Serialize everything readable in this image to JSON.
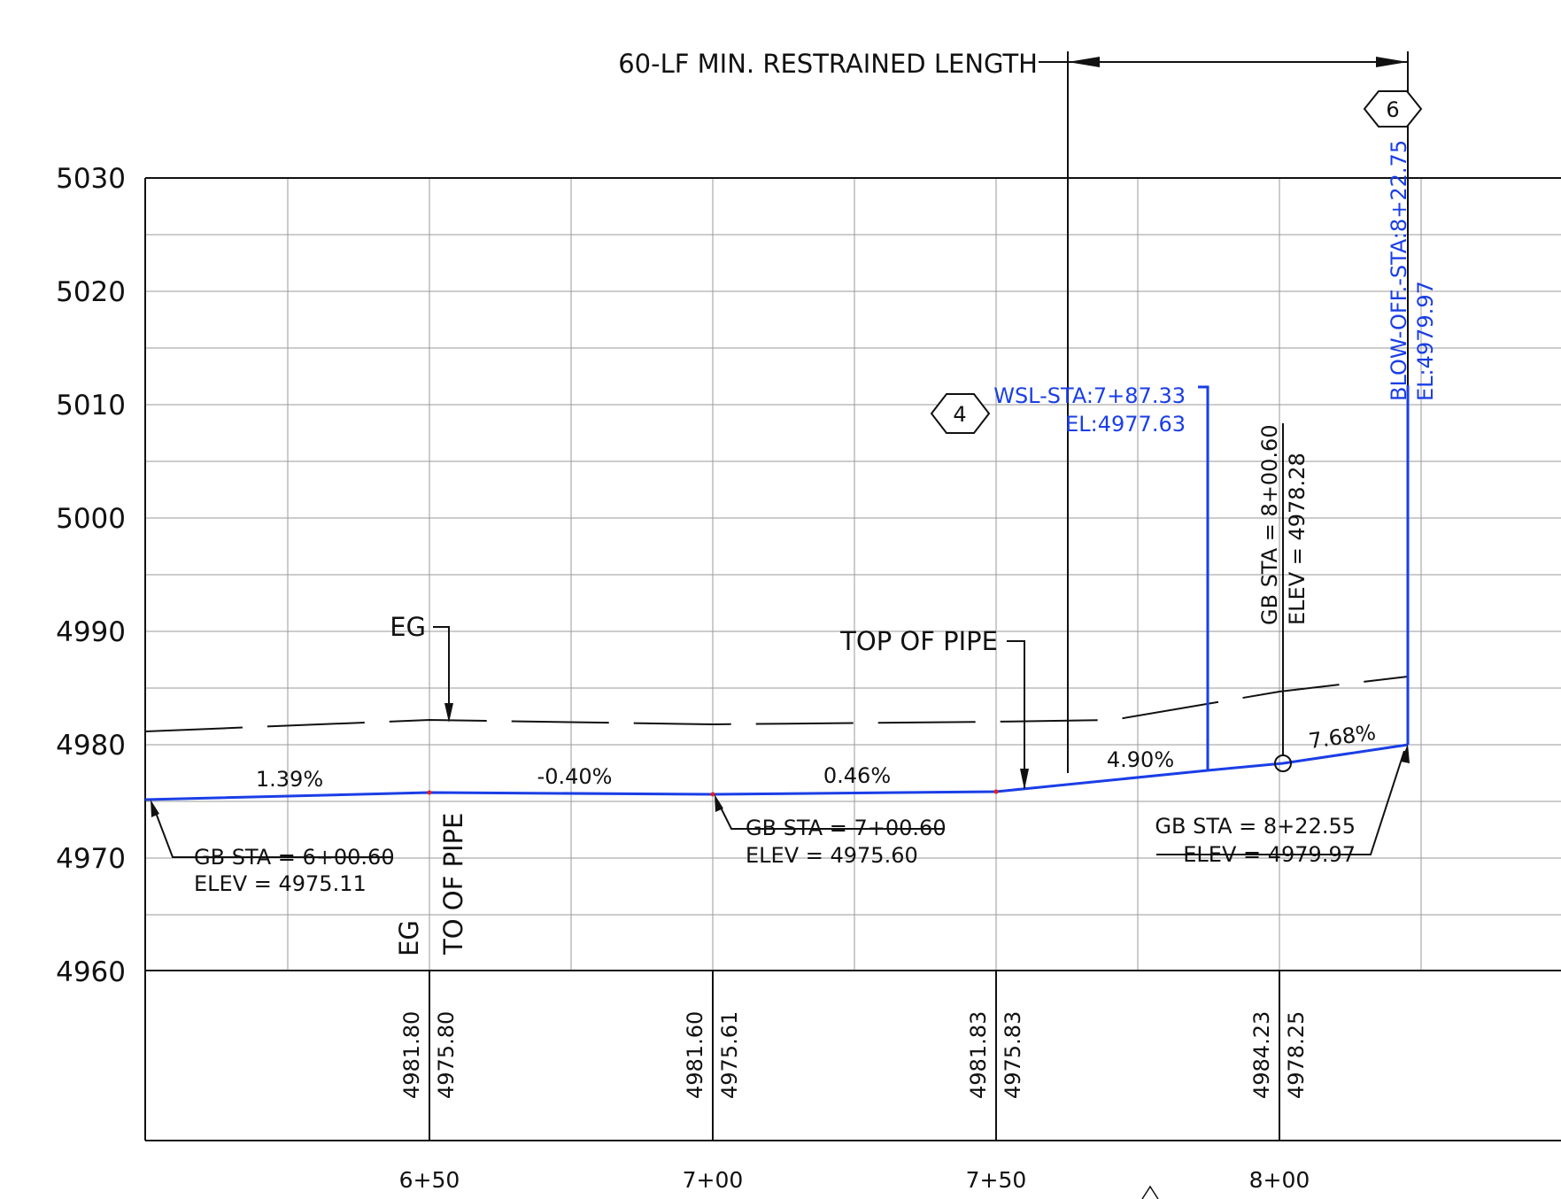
{
  "title": "60-LF MIN. RESTRAINED LENGTH",
  "y_axis": {
    "ticks": [
      "5030",
      "5020",
      "5010",
      "5000",
      "4990",
      "4980",
      "4970",
      "4960"
    ]
  },
  "x_axis": {
    "ticks": [
      "6+50",
      "7+00",
      "7+50",
      "8+00"
    ]
  },
  "callouts": {
    "hex_4": "4",
    "hex_6": "6",
    "wsl_sta": "WSL-STA:7+87.33",
    "wsl_el": "EL:4977.63",
    "blowoff_sta": "BLOW-OFF.-STA:8+22.75",
    "blowoff_el": "EL:4979.97",
    "eg_label": "EG",
    "top_of_pipe_label": "TOP OF PIPE"
  },
  "grades": [
    "1.39%",
    "-0.40%",
    "0.46%",
    "4.90%",
    "7.68%"
  ],
  "grade_breaks": [
    {
      "sta": "GB STA = 6+00.60",
      "elev": "ELEV =  4975.11"
    },
    {
      "sta": "GB STA = 7+00.60",
      "elev": "ELEV =  4975.60"
    },
    {
      "sta": "GB STA = 8+00.60",
      "elev": "ELEV =  4978.28"
    },
    {
      "sta": "GB STA = 8+22.55",
      "elev": "ELEV =  4979.97"
    }
  ],
  "row_labels": {
    "eg": "EG",
    "top_of_pipe": "TO OF PIPE"
  },
  "elevation_table": [
    {
      "eg": "4981.80",
      "pipe": "4975.80"
    },
    {
      "eg": "4981.60",
      "pipe": "4975.61"
    },
    {
      "eg": "4981.83",
      "pipe": "4975.83"
    },
    {
      "eg": "4984.23",
      "pipe": "4978.25"
    }
  ],
  "colors": {
    "pipe": "#1a3ee6",
    "ink": "#111111",
    "grid": "#9a9a9a"
  }
}
